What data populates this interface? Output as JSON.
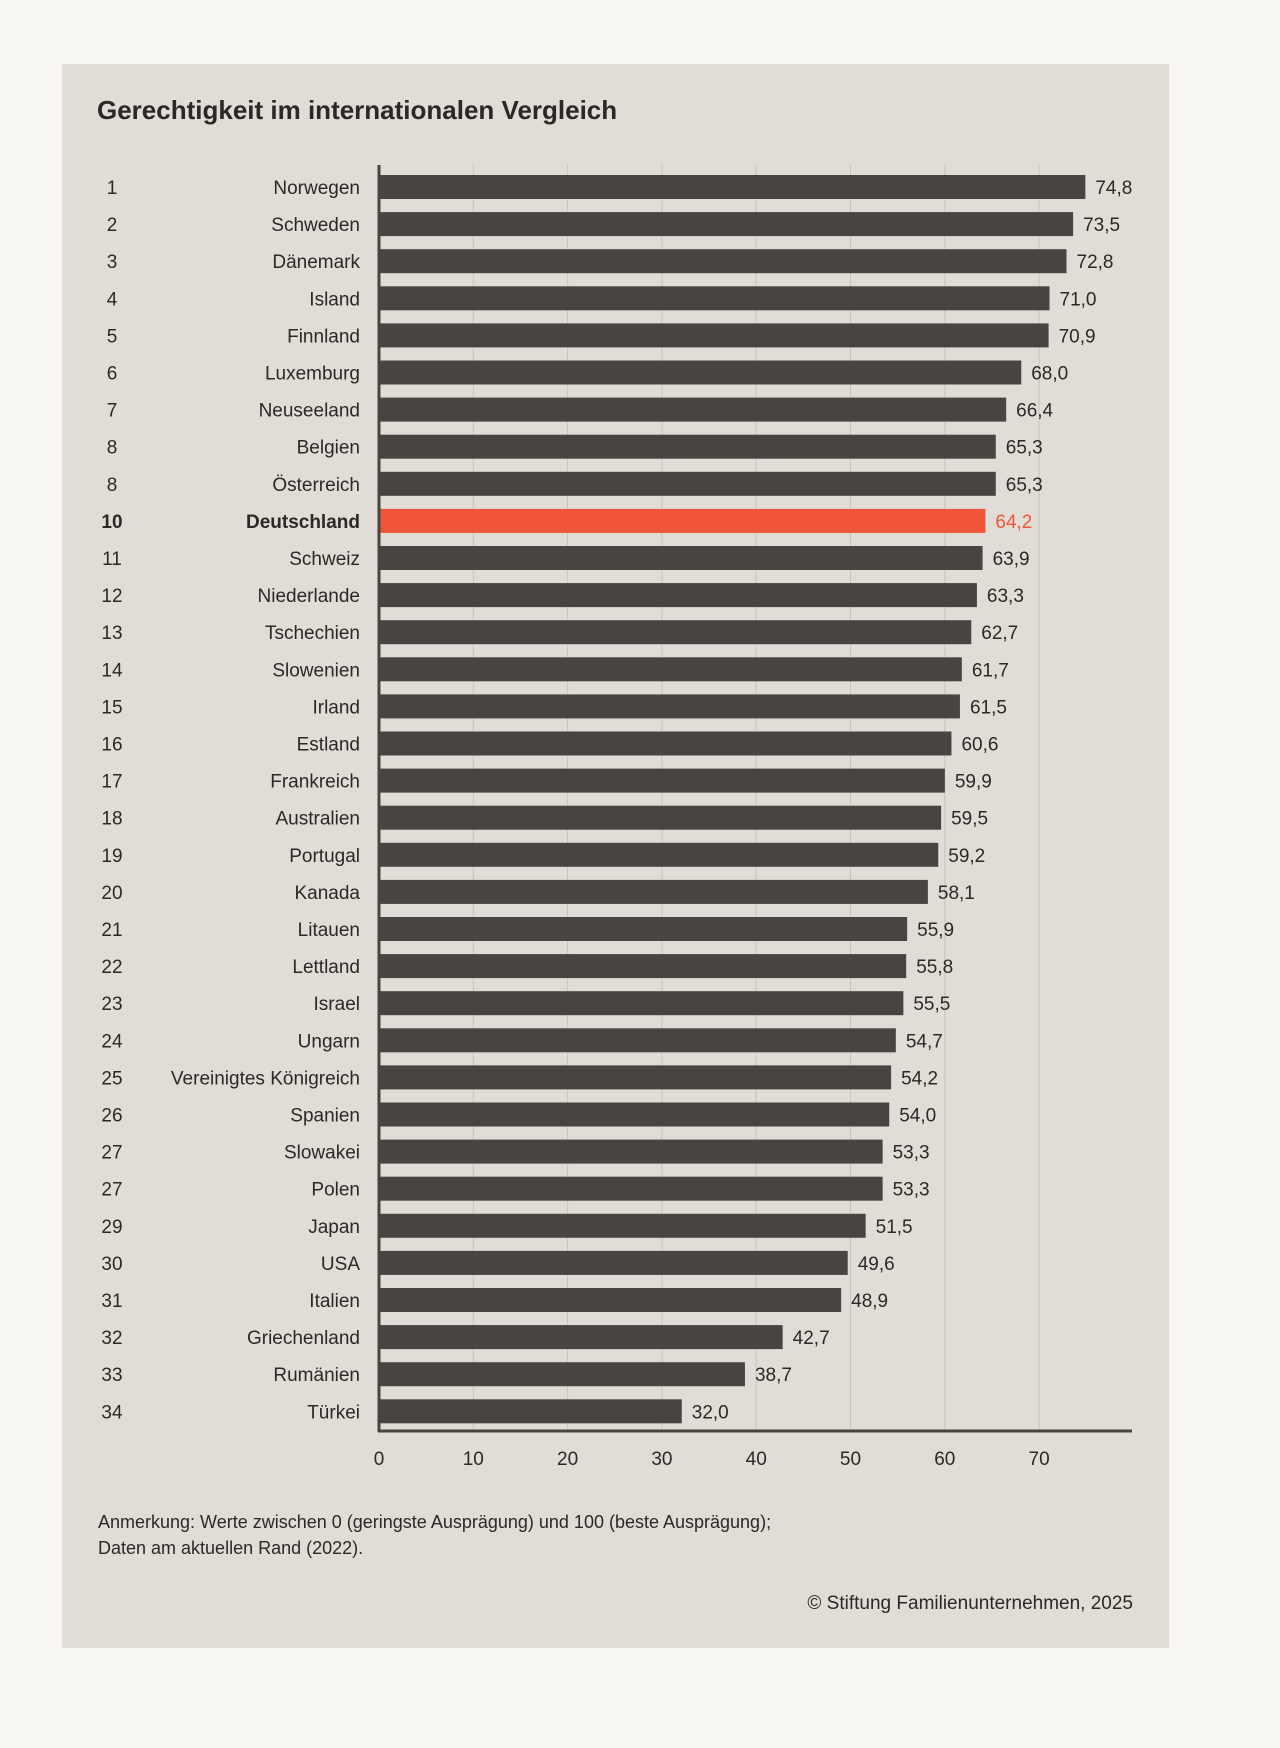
{
  "chart_data": {
    "type": "bar",
    "orientation": "horizontal",
    "title": "Gerechtigkeit im internationalen Vergleich",
    "ranks": [
      "1",
      "2",
      "3",
      "4",
      "5",
      "6",
      "7",
      "8",
      "8",
      "10",
      "11",
      "12",
      "13",
      "14",
      "15",
      "16",
      "17",
      "18",
      "19",
      "20",
      "21",
      "22",
      "23",
      "24",
      "25",
      "26",
      "27",
      "27",
      "29",
      "30",
      "31",
      "32",
      "33",
      "34"
    ],
    "categories": [
      "Norwegen",
      "Schweden",
      "Dänemark",
      "Island",
      "Finnland",
      "Luxemburg",
      "Neuseeland",
      "Belgien",
      "Österreich",
      "Deutschland",
      "Schweiz",
      "Niederlande",
      "Tschechien",
      "Slowenien",
      "Irland",
      "Estland",
      "Frankreich",
      "Australien",
      "Portugal",
      "Kanada",
      "Litauen",
      "Lettland",
      "Israel",
      "Ungarn",
      "Vereinigtes Königreich",
      "Spanien",
      "Slowakei",
      "Polen",
      "Japan",
      "USA",
      "Italien",
      "Griechenland",
      "Rumänien",
      "Türkei"
    ],
    "values": [
      74.8,
      73.5,
      72.8,
      71.0,
      70.9,
      68.0,
      66.4,
      65.3,
      65.3,
      64.2,
      63.9,
      63.3,
      62.7,
      61.7,
      61.5,
      60.6,
      59.9,
      59.5,
      59.2,
      58.1,
      55.9,
      55.8,
      55.5,
      54.7,
      54.2,
      54.0,
      53.3,
      53.3,
      51.5,
      49.6,
      48.9,
      42.7,
      38.7,
      32.0
    ],
    "value_labels": [
      "74,8",
      "73,5",
      "72,8",
      "71,0",
      "70,9",
      "68,0",
      "66,4",
      "65,3",
      "65,3",
      "64,2",
      "63,9",
      "63,3",
      "62,7",
      "61,7",
      "61,5",
      "60,6",
      "59,9",
      "59,5",
      "59,2",
      "58,1",
      "55,9",
      "55,8",
      "55,5",
      "54,7",
      "54,2",
      "54,0",
      "53,3",
      "53,3",
      "51,5",
      "49,6",
      "48,9",
      "42,7",
      "38,7",
      "32,0"
    ],
    "highlight": "Deutschland",
    "x_ticks": [
      "0",
      "10",
      "20",
      "30",
      "40",
      "50",
      "60",
      "70"
    ],
    "xlim": [
      0,
      80
    ],
    "grid": true,
    "colors": {
      "bar": "#484442",
      "highlight": "#f0553a",
      "text": "#2b2826",
      "grid": "#c9c3bc",
      "card": "#e1dcd6",
      "page": "#f8f6f3"
    }
  },
  "note": {
    "line1": "Anmerkung: Werte zwischen 0 (geringste Ausprägung) und 100 (beste Ausprägung);",
    "line2": "Daten am aktuellen Rand (2022)."
  },
  "credit": "© Stiftung Familienunternehmen, 2025"
}
